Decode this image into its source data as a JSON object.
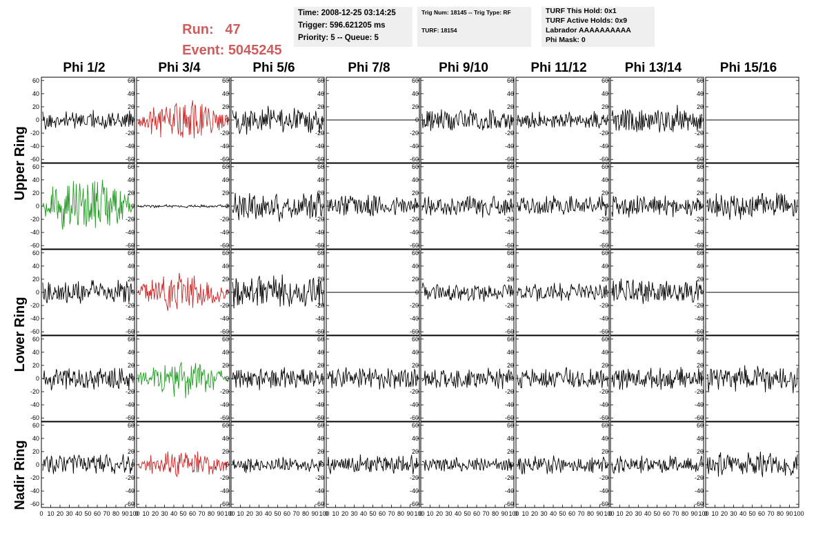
{
  "header": {
    "run_label": "Run:",
    "run_value": "47",
    "event_label": "Event:",
    "event_value": "5045245",
    "time_box": [
      "Time: 2008-12-25 03:14:25",
      "Trigger: 596.621205 ms",
      "Priority: 5 -- Queue: 5"
    ],
    "trig_box": [
      "Trig Num: 18145 -- Trig Type: RF",
      "TURF: 18154"
    ],
    "turf_box": [
      "TURF This Hold: 0x1",
      "TURF Active Holds: 0x9",
      "Labrador AAAAAAAAAA",
      "Phi Mask: 0"
    ]
  },
  "colors": {
    "accent": "#cd5c5c",
    "box_bg": "#efefef",
    "trace_default": "#000000",
    "trace_red": "#cc2222",
    "trace_green": "#229922"
  },
  "chart_data": {
    "type": "line",
    "columns": [
      "Phi 1/2",
      "Phi 3/4",
      "Phi 5/6",
      "Phi 7/8",
      "Phi 9/10",
      "Phi 11/12",
      "Phi 13/14",
      "Phi 15/16"
    ],
    "row_labels": [
      "Upper Ring",
      "Lower Ring",
      "Nadir Ring"
    ],
    "ylim": [
      -65,
      65
    ],
    "yticks": [
      -60,
      -40,
      -20,
      0,
      20,
      40,
      60
    ],
    "xlim": [
      0,
      100
    ],
    "xtick_labels": [
      "0",
      "10",
      "20",
      "30",
      "40",
      "50",
      "60",
      "70",
      "80",
      "90",
      "100"
    ],
    "panels": [
      [
        {
          "amp": 12,
          "color": "black",
          "shape": "flat",
          "seed": 11
        },
        {
          "amp": 30,
          "color": "red",
          "shape": "bulge",
          "seed": 12
        },
        {
          "amp": 18,
          "color": "black",
          "shape": "flat",
          "seed": 13
        },
        {
          "amp": 0,
          "color": "black",
          "shape": "flat",
          "seed": 14
        },
        {
          "amp": 16,
          "color": "black",
          "shape": "flat",
          "seed": 15
        },
        {
          "amp": 12,
          "color": "black",
          "shape": "flat",
          "seed": 16
        },
        {
          "amp": 18,
          "color": "black",
          "shape": "flat",
          "seed": 17
        },
        {
          "amp": 0,
          "color": "black",
          "shape": "flat",
          "seed": 18
        }
      ],
      [
        {
          "amp": 42,
          "color": "green",
          "shape": "bulge",
          "seed": 21
        },
        {
          "amp": 2,
          "color": "black",
          "shape": "flat",
          "seed": 22
        },
        {
          "amp": 20,
          "color": "black",
          "shape": "flat",
          "seed": 23
        },
        {
          "amp": 14,
          "color": "black",
          "shape": "flat",
          "seed": 24
        },
        {
          "amp": 14,
          "color": "black",
          "shape": "flat",
          "seed": 25
        },
        {
          "amp": 14,
          "color": "black",
          "shape": "flat",
          "seed": 26
        },
        {
          "amp": 14,
          "color": "black",
          "shape": "flat",
          "seed": 27
        },
        {
          "amp": 18,
          "color": "black",
          "shape": "flat",
          "seed": 28
        }
      ],
      [
        {
          "amp": 16,
          "color": "black",
          "shape": "flat",
          "seed": 31
        },
        {
          "amp": 26,
          "color": "red",
          "shape": "bulge",
          "seed": 32
        },
        {
          "amp": 22,
          "color": "black",
          "shape": "flat",
          "seed": 33
        },
        {
          "amp": 0,
          "color": "black",
          "shape": "flat",
          "seed": 34
        },
        {
          "amp": 12,
          "color": "black",
          "shape": "flat",
          "seed": 35
        },
        {
          "amp": 12,
          "color": "black",
          "shape": "flat",
          "seed": 36
        },
        {
          "amp": 18,
          "color": "black",
          "shape": "flat",
          "seed": 37
        },
        {
          "amp": 0,
          "color": "black",
          "shape": "flat",
          "seed": 38
        }
      ],
      [
        {
          "amp": 16,
          "color": "black",
          "shape": "flat",
          "seed": 41
        },
        {
          "amp": 24,
          "color": "green",
          "shape": "bulge",
          "seed": 42
        },
        {
          "amp": 14,
          "color": "black",
          "shape": "flat",
          "seed": 43
        },
        {
          "amp": 14,
          "color": "black",
          "shape": "flat",
          "seed": 44
        },
        {
          "amp": 14,
          "color": "black",
          "shape": "flat",
          "seed": 45
        },
        {
          "amp": 14,
          "color": "black",
          "shape": "flat",
          "seed": 46
        },
        {
          "amp": 14,
          "color": "black",
          "shape": "flat",
          "seed": 47
        },
        {
          "amp": 18,
          "color": "black",
          "shape": "flat",
          "seed": 48
        }
      ],
      [
        {
          "amp": 14,
          "color": "black",
          "shape": "flat",
          "seed": 51
        },
        {
          "amp": 18,
          "color": "red",
          "shape": "bulge",
          "seed": 52
        },
        {
          "amp": 10,
          "color": "black",
          "shape": "flat",
          "seed": 53
        },
        {
          "amp": 12,
          "color": "black",
          "shape": "flat",
          "seed": 54
        },
        {
          "amp": 10,
          "color": "black",
          "shape": "flat",
          "seed": 55
        },
        {
          "amp": 12,
          "color": "black",
          "shape": "flat",
          "seed": 56
        },
        {
          "amp": 12,
          "color": "black",
          "shape": "flat",
          "seed": 57
        },
        {
          "amp": 16,
          "color": "black",
          "shape": "flat",
          "seed": 58
        }
      ]
    ]
  }
}
